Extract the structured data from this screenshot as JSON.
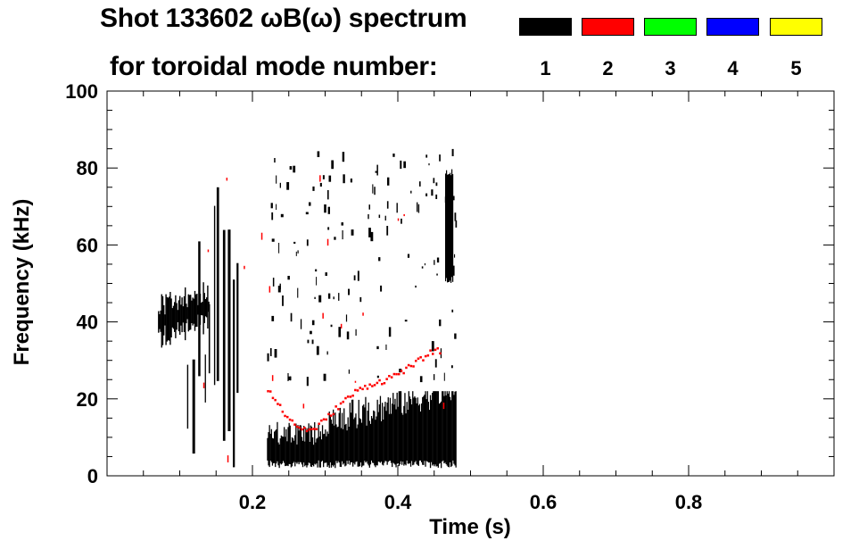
{
  "title_line1": "Shot 133602 ωB(ω) spectrum",
  "title_line2": "for toroidal mode number:",
  "legend": [
    {
      "label": "1",
      "color": "#000000"
    },
    {
      "label": "2",
      "color": "#ff0000"
    },
    {
      "label": "3",
      "color": "#00ff00"
    },
    {
      "label": "4",
      "color": "#0000ff"
    },
    {
      "label": "5",
      "color": "#ffff00"
    }
  ],
  "chart_data": {
    "type": "heatmap",
    "title": "Shot 133602 ωB(ω) spectrum for toroidal mode number",
    "xlabel": "Time (s)",
    "ylabel": "Frequency (kHz)",
    "xlim": [
      0,
      1.0
    ],
    "ylim": [
      0,
      100
    ],
    "xticks": [
      0.2,
      0.4,
      0.6,
      0.8
    ],
    "xtick_labels": [
      "0.2",
      "0.4",
      "0.6",
      "0.8"
    ],
    "yticks": [
      0,
      20,
      40,
      60,
      80,
      100
    ],
    "ytick_labels": [
      "0",
      "20",
      "40",
      "60",
      "80",
      "100"
    ],
    "series": [
      {
        "name": "n=1",
        "color": "#000000",
        "regions": [
          {
            "t": [
              0.07,
              0.14
            ],
            "f": [
              30,
              48
            ]
          },
          {
            "t": [
              0.11,
              0.18
            ],
            "f": [
              2,
              75
            ]
          },
          {
            "t": [
              0.22,
              0.48
            ],
            "f": [
              2,
              22
            ]
          },
          {
            "t": [
              0.465,
              0.475
            ],
            "f": [
              52,
              80
            ]
          }
        ]
      },
      {
        "name": "n=2",
        "color": "#ff0000",
        "trace": [
          {
            "t": 0.22,
            "f": 23
          },
          {
            "t": 0.24,
            "f": 17
          },
          {
            "t": 0.26,
            "f": 13
          },
          {
            "t": 0.28,
            "f": 12
          },
          {
            "t": 0.3,
            "f": 15
          },
          {
            "t": 0.32,
            "f": 19
          },
          {
            "t": 0.34,
            "f": 22
          },
          {
            "t": 0.36,
            "f": 24
          },
          {
            "t": 0.38,
            "f": 25
          },
          {
            "t": 0.4,
            "f": 27
          },
          {
            "t": 0.42,
            "f": 29
          },
          {
            "t": 0.44,
            "f": 32
          },
          {
            "t": 0.46,
            "f": 33
          }
        ]
      }
    ]
  }
}
